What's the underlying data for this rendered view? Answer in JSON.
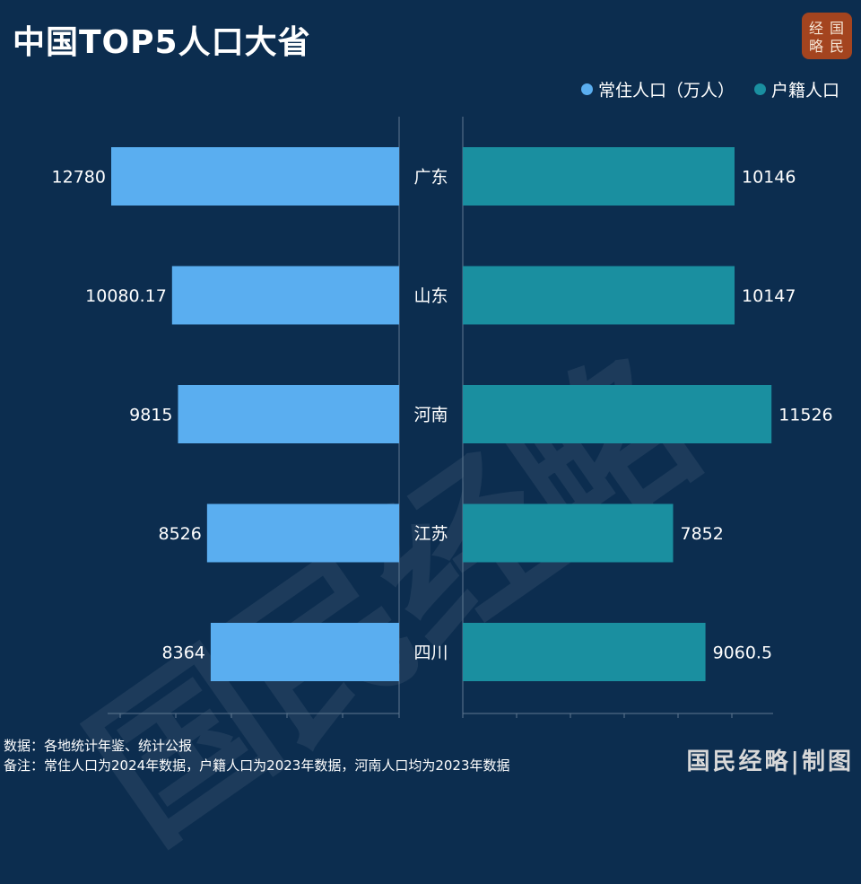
{
  "header": {
    "title": "中国TOP5人口大省",
    "logo_text": "经国略民"
  },
  "legend": [
    {
      "label": "常住人口（万人）",
      "color": "#5aaef0"
    },
    {
      "label": "户籍人口",
      "color": "#1a8fa0"
    }
  ],
  "watermark": "国民经略",
  "notes": {
    "source": "数据：各地统计年鉴、统计公报",
    "remark": "备注：常住人口为2024年数据，户籍人口为2023年数据，河南人口均为2023年数据"
  },
  "credit": "国民经略|制图",
  "colors": {
    "background": "#0c2d4f",
    "resident": "#5aaef0",
    "registered": "#1a8fa0",
    "logo": "#a4441f"
  },
  "chart_data": {
    "type": "bar",
    "orientation": "horizontal-butterfly",
    "categories": [
      "广东",
      "山东",
      "河南",
      "江苏",
      "四川"
    ],
    "series": [
      {
        "name": "常住人口（万人）",
        "values": [
          12780,
          10080.17,
          9815,
          8526,
          8364
        ],
        "labels": [
          "12780",
          "10080.17",
          "9815",
          "8526",
          "8364"
        ],
        "side": "left"
      },
      {
        "name": "户籍人口",
        "values": [
          10146,
          10147,
          11526,
          7852,
          9060.5
        ],
        "labels": [
          "10146",
          "10147",
          "11526",
          "7852",
          "9060.5"
        ],
        "side": "right"
      }
    ],
    "xlim": [
      0,
      14000
    ],
    "legend_position": "top-right",
    "grid": false
  }
}
